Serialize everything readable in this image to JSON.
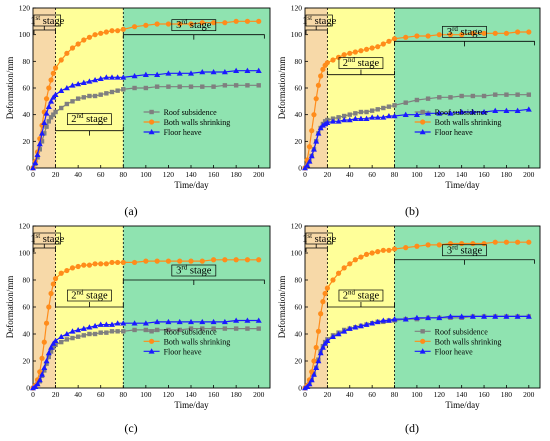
{
  "colors": {
    "stage1": "#f7d9a8",
    "stage2": "#ffff99",
    "stage3": "#8fe3b0",
    "roof": "#7f7f7f",
    "walls": "#ff8c1a",
    "floor": "#1a1aff"
  },
  "chart_data": [
    {
      "type": "line",
      "panel_label": "(a)",
      "xlabel": "Time/day",
      "ylabel": "Deformation/mm",
      "xlim": [
        0,
        210
      ],
      "ylim": [
        0,
        120
      ],
      "xticks": [
        0,
        20,
        40,
        60,
        80,
        100,
        120,
        140,
        160,
        180,
        200
      ],
      "yticks": [
        0,
        20,
        40,
        60,
        80,
        100,
        120
      ],
      "stages": [
        "1st stage",
        "2nd stage",
        "3rd stage"
      ],
      "stage_bounds": [
        0,
        20,
        80,
        210
      ],
      "legend_position": "lower-right",
      "series": [
        {
          "name": "Roof subsidence",
          "color_key": "roof",
          "marker": "square",
          "x": [
            0,
            2,
            4,
            6,
            8,
            10,
            12,
            14,
            16,
            18,
            20,
            25,
            30,
            35,
            40,
            45,
            50,
            55,
            60,
            65,
            70,
            75,
            80,
            90,
            100,
            110,
            120,
            130,
            140,
            150,
            160,
            170,
            180,
            190,
            200
          ],
          "y": [
            0,
            3,
            8,
            14,
            20,
            26,
            31,
            35,
            38,
            40,
            42,
            45,
            48,
            50,
            52,
            53,
            54,
            54,
            55,
            56,
            57,
            58,
            59,
            60,
            60,
            61,
            61,
            61,
            61,
            61,
            61,
            62,
            62,
            62,
            62
          ]
        },
        {
          "name": "Both walls shrinking",
          "color_key": "walls",
          "marker": "circle",
          "x": [
            0,
            2,
            4,
            6,
            8,
            10,
            12,
            14,
            16,
            18,
            20,
            25,
            30,
            35,
            40,
            45,
            50,
            55,
            60,
            65,
            70,
            75,
            80,
            90,
            100,
            110,
            120,
            130,
            140,
            150,
            160,
            170,
            180,
            190,
            200
          ],
          "y": [
            0,
            5,
            12,
            22,
            32,
            42,
            52,
            60,
            66,
            71,
            75,
            81,
            86,
            90,
            93,
            96,
            98,
            100,
            101,
            102,
            103,
            103,
            104,
            106,
            107,
            108,
            108,
            108,
            108,
            109,
            109,
            109,
            110,
            110,
            110
          ]
        },
        {
          "name": "Floor heave",
          "color_key": "floor",
          "marker": "triangle",
          "x": [
            0,
            2,
            4,
            6,
            8,
            10,
            12,
            14,
            16,
            18,
            20,
            25,
            30,
            35,
            40,
            45,
            50,
            55,
            60,
            65,
            70,
            75,
            80,
            90,
            100,
            110,
            120,
            130,
            140,
            150,
            160,
            170,
            180,
            190,
            200
          ],
          "y": [
            0,
            4,
            10,
            18,
            26,
            34,
            41,
            46,
            50,
            53,
            55,
            58,
            60,
            62,
            63,
            64,
            65,
            66,
            67,
            68,
            68,
            68,
            68,
            69,
            70,
            70,
            71,
            71,
            71,
            72,
            72,
            72,
            73,
            73,
            73
          ]
        }
      ]
    },
    {
      "type": "line",
      "panel_label": "(b)",
      "xlabel": "Time/day",
      "ylabel": "Deformation/mm",
      "xlim": [
        0,
        210
      ],
      "ylim": [
        0,
        120
      ],
      "xticks": [
        0,
        20,
        40,
        60,
        80,
        100,
        120,
        140,
        160,
        180,
        200
      ],
      "yticks": [
        0,
        20,
        40,
        60,
        80,
        100,
        120
      ],
      "stages": [
        "1st stage",
        "2nd stage",
        "3rd stage"
      ],
      "stage_bounds": [
        0,
        20,
        80,
        210
      ],
      "legend_position": "lower-right",
      "series": [
        {
          "name": "Roof subsidence",
          "color_key": "roof",
          "marker": "square",
          "x": [
            0,
            2,
            4,
            6,
            8,
            10,
            12,
            14,
            16,
            18,
            20,
            25,
            30,
            35,
            40,
            45,
            50,
            55,
            60,
            65,
            70,
            75,
            80,
            90,
            100,
            110,
            120,
            130,
            140,
            150,
            160,
            170,
            180,
            190,
            200
          ],
          "y": [
            0,
            2,
            5,
            9,
            14,
            20,
            26,
            30,
            33,
            35,
            36,
            37,
            38,
            39,
            40,
            41,
            42,
            42,
            43,
            44,
            45,
            46,
            47,
            49,
            51,
            52,
            53,
            53,
            54,
            54,
            54,
            55,
            55,
            55,
            55
          ]
        },
        {
          "name": "Both walls shrinking",
          "color_key": "walls",
          "marker": "circle",
          "x": [
            0,
            2,
            4,
            6,
            8,
            10,
            12,
            14,
            16,
            18,
            20,
            25,
            30,
            35,
            40,
            45,
            50,
            55,
            60,
            65,
            70,
            75,
            80,
            90,
            100,
            110,
            120,
            130,
            140,
            150,
            160,
            170,
            180,
            190,
            200
          ],
          "y": [
            0,
            6,
            16,
            28,
            40,
            52,
            62,
            69,
            74,
            77,
            79,
            81,
            83,
            85,
            86,
            87,
            88,
            89,
            90,
            91,
            93,
            95,
            97,
            98,
            99,
            99,
            100,
            100,
            100,
            101,
            101,
            101,
            101,
            102,
            102
          ]
        },
        {
          "name": "Floor heave",
          "color_key": "floor",
          "marker": "triangle",
          "x": [
            0,
            2,
            4,
            6,
            8,
            10,
            12,
            14,
            16,
            18,
            20,
            25,
            30,
            35,
            40,
            45,
            50,
            55,
            60,
            65,
            70,
            75,
            80,
            90,
            100,
            110,
            120,
            130,
            140,
            150,
            160,
            170,
            180,
            190,
            200
          ],
          "y": [
            0,
            2,
            5,
            9,
            14,
            20,
            26,
            30,
            32,
            33,
            34,
            35,
            35,
            36,
            36,
            37,
            37,
            37,
            38,
            38,
            38,
            39,
            39,
            40,
            40,
            41,
            41,
            41,
            42,
            42,
            42,
            43,
            43,
            43,
            44
          ]
        }
      ]
    },
    {
      "type": "line",
      "panel_label": "(c)",
      "xlabel": "Time/day",
      "ylabel": "Deformation/mm",
      "xlim": [
        0,
        210
      ],
      "ylim": [
        0,
        120
      ],
      "xticks": [
        0,
        20,
        40,
        60,
        80,
        100,
        120,
        140,
        160,
        180,
        200
      ],
      "yticks": [
        0,
        20,
        40,
        60,
        80,
        100,
        120
      ],
      "stages": [
        "1st stage",
        "2nd stage",
        "3rd stage"
      ],
      "stage_bounds": [
        0,
        20,
        80,
        210
      ],
      "legend_position": "lower-right",
      "series": [
        {
          "name": "Roof subsidence",
          "color_key": "roof",
          "marker": "square",
          "x": [
            0,
            2,
            4,
            6,
            8,
            10,
            12,
            14,
            16,
            18,
            20,
            25,
            30,
            35,
            40,
            45,
            50,
            55,
            60,
            65,
            70,
            75,
            80,
            90,
            100,
            110,
            120,
            130,
            140,
            150,
            160,
            170,
            180,
            190,
            200
          ],
          "y": [
            0,
            1,
            3,
            5,
            9,
            13,
            18,
            23,
            27,
            30,
            32,
            34,
            36,
            37,
            38,
            39,
            40,
            40,
            41,
            41,
            42,
            42,
            42,
            43,
            43,
            43,
            43,
            43,
            44,
            44,
            44,
            44,
            44,
            44,
            44
          ]
        },
        {
          "name": "Both walls shrinking",
          "color_key": "walls",
          "marker": "circle",
          "x": [
            0,
            2,
            4,
            6,
            8,
            10,
            12,
            14,
            16,
            18,
            20,
            25,
            30,
            35,
            40,
            45,
            50,
            55,
            60,
            65,
            70,
            75,
            80,
            90,
            100,
            110,
            120,
            130,
            140,
            150,
            160,
            170,
            180,
            190,
            200
          ],
          "y": [
            0,
            2,
            6,
            12,
            22,
            34,
            48,
            60,
            70,
            77,
            81,
            85,
            87,
            89,
            90,
            91,
            91,
            92,
            92,
            92,
            93,
            93,
            93,
            93,
            94,
            94,
            94,
            94,
            94,
            94,
            95,
            95,
            95,
            95,
            95
          ]
        },
        {
          "name": "Floor heave",
          "color_key": "floor",
          "marker": "triangle",
          "x": [
            0,
            2,
            4,
            6,
            8,
            10,
            12,
            14,
            16,
            18,
            20,
            25,
            30,
            35,
            40,
            45,
            50,
            55,
            60,
            65,
            70,
            75,
            80,
            90,
            100,
            110,
            120,
            130,
            140,
            150,
            160,
            170,
            180,
            190,
            200
          ],
          "y": [
            0,
            1,
            3,
            6,
            10,
            15,
            20,
            26,
            30,
            33,
            35,
            38,
            40,
            42,
            43,
            44,
            45,
            46,
            47,
            47,
            47,
            48,
            48,
            48,
            48,
            49,
            49,
            49,
            49,
            49,
            49,
            49,
            50,
            50,
            50
          ]
        }
      ]
    },
    {
      "type": "line",
      "panel_label": "(d)",
      "xlabel": "Time/day",
      "ylabel": "Deformation/mm",
      "xlim": [
        0,
        210
      ],
      "ylim": [
        0,
        120
      ],
      "xticks": [
        0,
        20,
        40,
        60,
        80,
        100,
        120,
        140,
        160,
        180,
        200
      ],
      "yticks": [
        0,
        20,
        40,
        60,
        80,
        100,
        120
      ],
      "stages": [
        "1st stage",
        "2nd stage",
        "3rd stage"
      ],
      "stage_bounds": [
        0,
        20,
        80,
        210
      ],
      "legend_position": "lower-right",
      "series": [
        {
          "name": "Roof subsidence",
          "color_key": "roof",
          "marker": "square",
          "x": [
            0,
            2,
            4,
            6,
            8,
            10,
            12,
            14,
            16,
            18,
            20,
            25,
            30,
            35,
            40,
            45,
            50,
            55,
            60,
            65,
            70,
            75,
            80,
            90,
            100,
            110,
            120,
            130,
            140,
            150,
            160,
            170,
            180,
            190,
            200
          ],
          "y": [
            0,
            1,
            3,
            6,
            10,
            15,
            21,
            27,
            31,
            34,
            36,
            39,
            41,
            43,
            44,
            45,
            46,
            47,
            48,
            49,
            49,
            50,
            50,
            51,
            51,
            52,
            52,
            52,
            52,
            53,
            53,
            53,
            53,
            53,
            53
          ]
        },
        {
          "name": "Both walls shrinking",
          "color_key": "walls",
          "marker": "circle",
          "x": [
            0,
            2,
            4,
            6,
            8,
            10,
            12,
            14,
            16,
            18,
            20,
            25,
            30,
            35,
            40,
            45,
            50,
            55,
            60,
            65,
            70,
            75,
            80,
            90,
            100,
            110,
            120,
            130,
            140,
            150,
            160,
            170,
            180,
            190,
            200
          ],
          "y": [
            0,
            2,
            6,
            12,
            20,
            30,
            42,
            55,
            64,
            70,
            74,
            80,
            85,
            89,
            92,
            95,
            97,
            99,
            100,
            101,
            102,
            102,
            103,
            104,
            105,
            106,
            106,
            107,
            107,
            107,
            107,
            108,
            108,
            108,
            108
          ]
        },
        {
          "name": "Floor heave",
          "color_key": "floor",
          "marker": "triangle",
          "x": [
            0,
            2,
            4,
            6,
            8,
            10,
            12,
            14,
            16,
            18,
            20,
            25,
            30,
            35,
            40,
            45,
            50,
            55,
            60,
            65,
            70,
            75,
            80,
            90,
            100,
            110,
            120,
            130,
            140,
            150,
            160,
            170,
            180,
            190,
            200
          ],
          "y": [
            0,
            1,
            3,
            6,
            10,
            15,
            20,
            26,
            30,
            33,
            35,
            38,
            40,
            42,
            44,
            45,
            46,
            47,
            48,
            49,
            50,
            50,
            51,
            51,
            52,
            52,
            52,
            53,
            53,
            53,
            53,
            53,
            53,
            53,
            53
          ]
        }
      ]
    }
  ]
}
